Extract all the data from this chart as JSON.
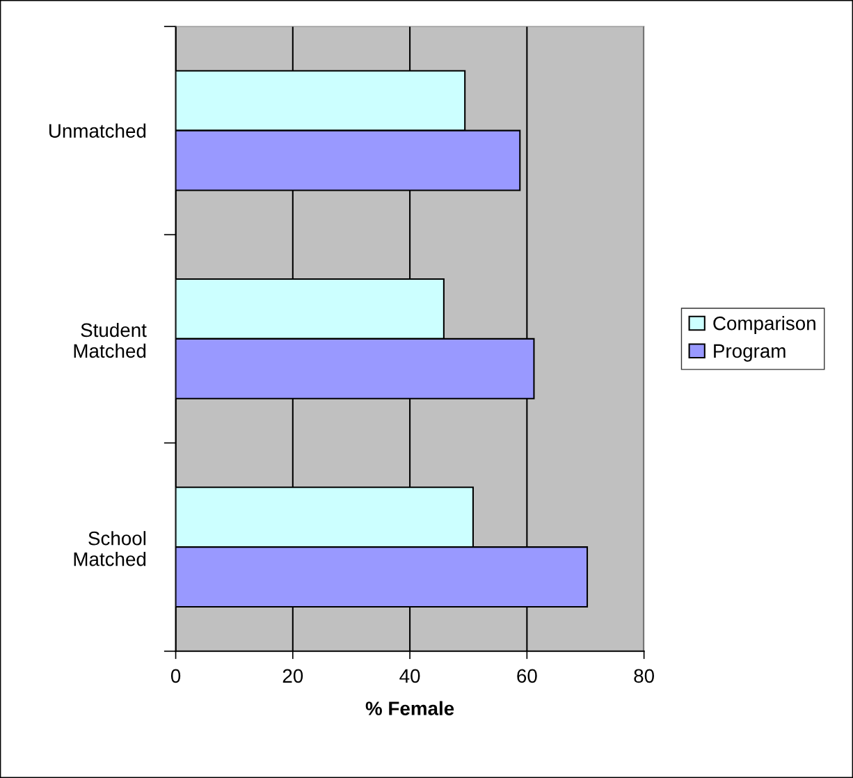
{
  "chart_data": {
    "type": "bar",
    "orientation": "horizontal",
    "xlabel": "% Female",
    "categories": [
      "Unmatched",
      "Student\nMatched",
      "School\nMatched"
    ],
    "series": [
      {
        "name": "Comparison",
        "color": "#ccffff",
        "values": [
          49.4,
          45.8,
          50.8
        ]
      },
      {
        "name": "Program",
        "color": "#9999ff",
        "values": [
          58.8,
          61.2,
          70.3
        ]
      }
    ],
    "xlim": [
      0,
      80
    ],
    "xticks": [
      0,
      20,
      40,
      60,
      80
    ],
    "grid": "x",
    "legend": "right"
  }
}
